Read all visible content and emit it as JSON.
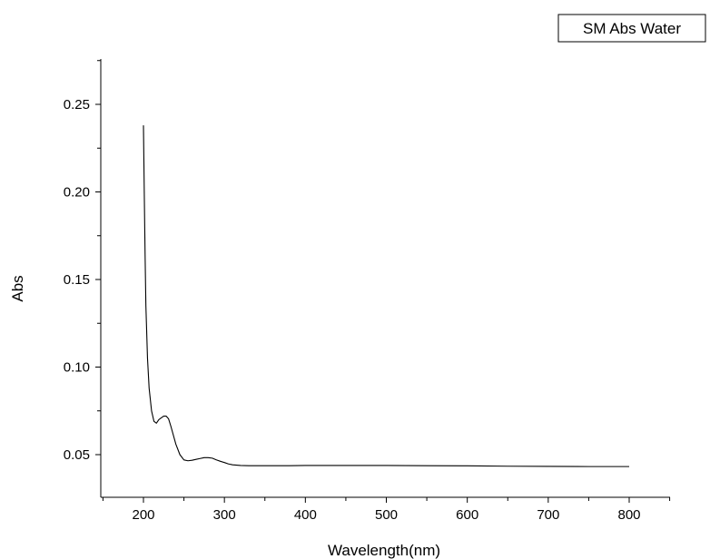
{
  "chart_data": {
    "type": "line",
    "title": "",
    "xlabel": "Wavelength(nm)",
    "ylabel": "Abs",
    "xlim": [
      150,
      850
    ],
    "ylim": [
      0.028,
      0.275
    ],
    "x_ticks": [
      200,
      300,
      400,
      500,
      600,
      700,
      800
    ],
    "y_ticks": [
      0.05,
      0.1,
      0.15,
      0.2,
      0.25
    ],
    "x_tick_labels": [
      "200",
      "300",
      "400",
      "500",
      "600",
      "700",
      "800"
    ],
    "y_tick_labels": [
      "0.05",
      "0.10",
      "0.15",
      "0.20",
      "0.25"
    ],
    "grid": false,
    "legend_position": "top-right",
    "series": [
      {
        "name": "SM Abs Water",
        "color": "#000000",
        "x": [
          200,
          201,
          202,
          203,
          205,
          207,
          210,
          213,
          216,
          219,
          222,
          225,
          228,
          231,
          234,
          237,
          240,
          245,
          250,
          255,
          260,
          265,
          270,
          275,
          280,
          285,
          290,
          295,
          300,
          305,
          310,
          320,
          330,
          340,
          350,
          360,
          380,
          400,
          450,
          500,
          550,
          600,
          650,
          700,
          750,
          800
        ],
        "y": [
          0.238,
          0.2,
          0.165,
          0.135,
          0.105,
          0.088,
          0.075,
          0.069,
          0.068,
          0.07,
          0.071,
          0.072,
          0.072,
          0.0705,
          0.066,
          0.061,
          0.056,
          0.05,
          0.047,
          0.0465,
          0.0468,
          0.0473,
          0.0478,
          0.0483,
          0.0483,
          0.048,
          0.047,
          0.0462,
          0.0455,
          0.0447,
          0.0442,
          0.0438,
          0.0437,
          0.0437,
          0.0437,
          0.0437,
          0.0437,
          0.0438,
          0.0438,
          0.0438,
          0.0437,
          0.0436,
          0.0434,
          0.0433,
          0.0432,
          0.0432
        ]
      }
    ]
  }
}
